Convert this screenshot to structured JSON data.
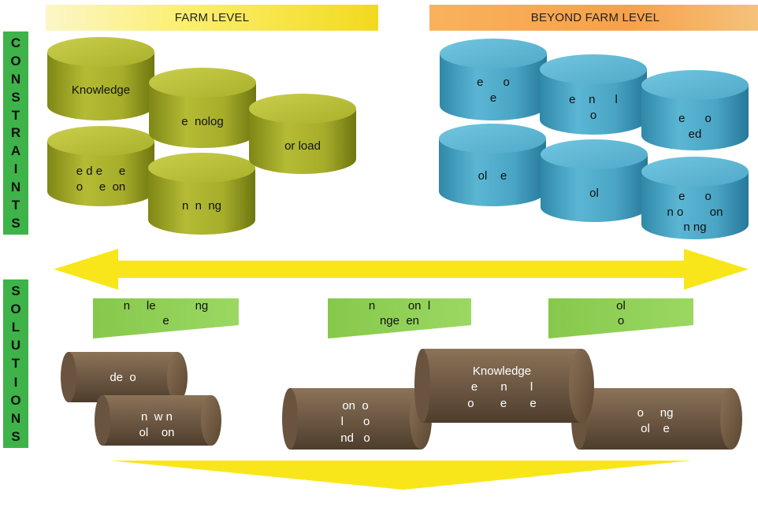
{
  "headers": {
    "farm": "FARM LEVEL",
    "beyond": "BEYOND FARM LEVEL"
  },
  "side_labels": {
    "constraints": [
      "C",
      "O",
      "N",
      "S",
      "T",
      "R",
      "A",
      "I",
      "N",
      "T",
      "S"
    ],
    "solutions": [
      "S",
      "O",
      "L",
      "U",
      "T",
      "I",
      "O",
      "N",
      "S"
    ]
  },
  "farm_cylinders": [
    {
      "label": "Knowledge"
    },
    {
      "label": "e  nolog"
    },
    {
      "label": "or load"
    },
    {
      "label": "e d e     e\no     e  on"
    },
    {
      "label": "n  n  ng"
    }
  ],
  "beyond_cylinders": [
    {
      "label": "e      o\ne"
    },
    {
      "label": "e    n      l\no"
    },
    {
      "label": "e      o\ned"
    },
    {
      "label": "ol    e"
    },
    {
      "label": "ol"
    },
    {
      "label": "e      o\nn o        on\nn ng"
    }
  ],
  "solution_tabs": [
    {
      "label": "n     le            ng\ne"
    },
    {
      "label": "n          on  l\nnge  en"
    },
    {
      "label": "ol\no"
    }
  ],
  "logs": [
    {
      "label": "de  o"
    },
    {
      "label": "n  w n\nol    on"
    },
    {
      "label": "on  o\nl      o\nnd   o"
    },
    {
      "label": "Knowledge\ne       n       l\no        e       e"
    },
    {
      "label": "o     ng\nol    e"
    }
  ],
  "colors": {
    "farm_cylinder": "#a9b02a",
    "beyond_cylinder": "#4fa9c9",
    "solution_tab": "#8fcf55",
    "log": "#6b5540",
    "arrow": "#f8e61b",
    "side_bar": "#3eb349"
  }
}
